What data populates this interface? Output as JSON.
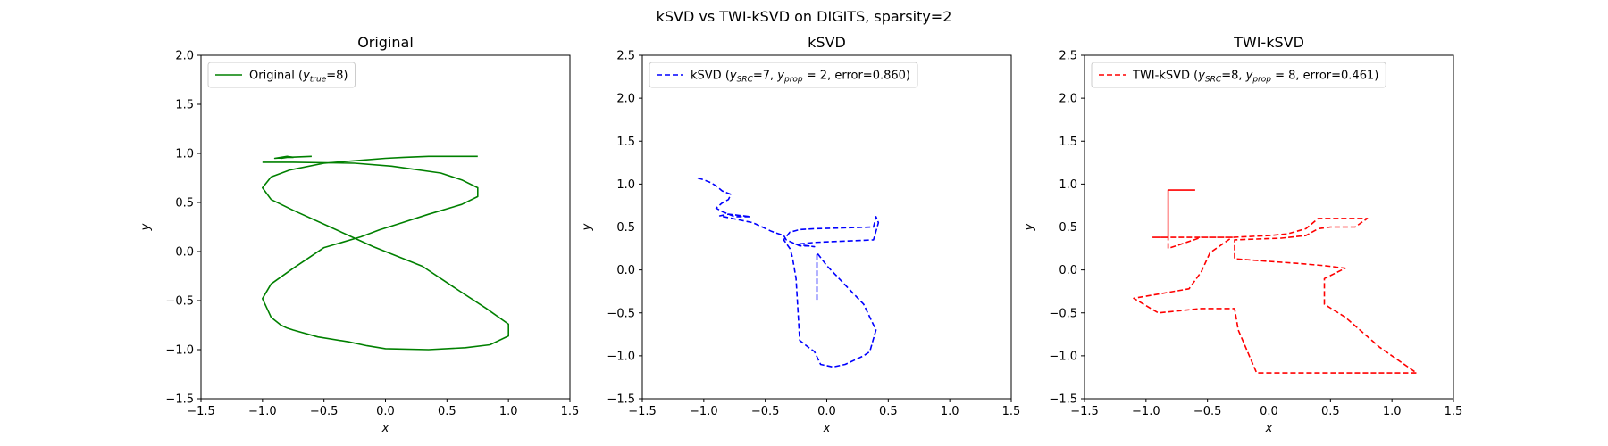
{
  "figure": {
    "suptitle": "kSVD vs TWI-kSVD on DIGITS, sparsity=2"
  },
  "chart_data": [
    {
      "type": "line",
      "title": "Original",
      "xlabel": "x",
      "ylabel": "y",
      "xlim": [
        -1.5,
        1.5
      ],
      "ylim": [
        -1.5,
        2.0
      ],
      "xticks": [
        "−1.5",
        "−1.0",
        "−0.5",
        "0.0",
        "0.5",
        "1.0",
        "1.5"
      ],
      "yticks": [
        "−1.5",
        "−1.0",
        "−0.5",
        "0.0",
        "0.5",
        "1.0",
        "1.5",
        "2.0"
      ],
      "legend_position": "upper-left",
      "legend": {
        "prefix": "Original (",
        "sym1": "y",
        "sub1": "true",
        "rest1": "=8)"
      },
      "series": [
        {
          "color": "#008000",
          "dash": "solid",
          "x": [
            -0.85,
            -0.8,
            -0.75,
            -0.8,
            -0.85,
            -0.9,
            -0.8,
            -0.6
          ],
          "y": [
            0.95,
            0.96,
            0.96,
            0.97,
            0.96,
            0.95,
            0.96,
            0.97
          ],
          "x2": [
            -1.0,
            -0.75,
            -0.25,
            0.05,
            0.45,
            0.62,
            0.75,
            0.75,
            0.62,
            0.35,
            0.1,
            -0.05,
            -0.2,
            -0.5,
            -0.75,
            -0.93,
            -1.0,
            -0.93,
            -0.85,
            -0.8,
            -0.75,
            -0.55,
            -0.3,
            -0.15,
            0.0,
            0.35,
            0.65,
            0.85,
            1.0,
            1.0,
            0.82,
            0.6,
            0.3,
            -0.1,
            -0.45,
            -0.75,
            -0.93,
            -1.0,
            -0.93,
            -0.78,
            -0.5,
            -0.2,
            0.0,
            0.15,
            0.35,
            0.65,
            0.75
          ],
          "y2": [
            0.91,
            0.91,
            0.9,
            0.87,
            0.8,
            0.73,
            0.65,
            0.56,
            0.48,
            0.38,
            0.28,
            0.22,
            0.15,
            0.04,
            -0.17,
            -0.33,
            -0.48,
            -0.67,
            -0.75,
            -0.78,
            -0.8,
            -0.87,
            -0.92,
            -0.96,
            -0.99,
            -1.0,
            -0.98,
            -0.95,
            -0.86,
            -0.74,
            -0.58,
            -0.4,
            -0.15,
            0.05,
            0.25,
            0.42,
            0.53,
            0.65,
            0.76,
            0.83,
            0.9,
            0.93,
            0.95,
            0.96,
            0.97,
            0.97,
            0.97
          ]
        }
      ]
    },
    {
      "type": "line",
      "title": "kSVD",
      "xlabel": "x",
      "ylabel": "y",
      "xlim": [
        -1.5,
        1.5
      ],
      "ylim": [
        -1.5,
        2.5
      ],
      "xticks": [
        "−1.5",
        "−1.0",
        "−0.5",
        "0.0",
        "0.5",
        "1.0",
        "1.5"
      ],
      "yticks": [
        "−1.5",
        "−1.0",
        "−0.5",
        "0.0",
        "0.5",
        "1.0",
        "1.5",
        "2.0",
        "2.5"
      ],
      "legend_position": "upper-left",
      "legend": {
        "prefix": "kSVD (",
        "sym1": "y",
        "sub1": "SRC",
        "rest1": "=7, ",
        "sym2": "y",
        "sub2": "prop",
        "rest2": " = 2, error=0.860)"
      },
      "series": [
        {
          "color": "#0000ff",
          "dash": "dashed",
          "x": [
            -1.05,
            -1.0,
            -0.95,
            -0.9,
            -0.85,
            -0.78,
            -0.8,
            -0.85,
            -0.9,
            -0.85,
            -0.75,
            -0.62,
            -0.8,
            -0.87,
            -0.6,
            -0.45,
            -0.35,
            -0.33,
            -0.25,
            -0.22,
            -0.15,
            -0.1,
            -0.15,
            -0.25,
            -0.1,
            0.38,
            0.4,
            0.42,
            0.4,
            0.38,
            -0.1,
            -0.22,
            -0.3,
            -0.35,
            -0.3,
            -0.28,
            -0.25,
            -0.22,
            -0.15,
            -0.1,
            -0.05,
            0.05,
            0.15,
            0.3,
            0.35,
            0.38,
            0.4,
            0.35,
            0.3,
            0.2,
            0.1,
            0.0,
            -0.08,
            -0.08
          ],
          "y": [
            1.07,
            1.05,
            1.02,
            0.98,
            0.92,
            0.88,
            0.82,
            0.78,
            0.72,
            0.68,
            0.62,
            0.62,
            0.65,
            0.63,
            0.55,
            0.45,
            0.4,
            0.35,
            0.3,
            0.28,
            0.28,
            0.27,
            0.28,
            0.3,
            0.32,
            0.35,
            0.45,
            0.55,
            0.62,
            0.5,
            0.48,
            0.47,
            0.44,
            0.35,
            0.25,
            0.15,
            -0.1,
            -0.82,
            -0.9,
            -0.95,
            -1.1,
            -1.13,
            -1.1,
            -1.0,
            -0.95,
            -0.8,
            -0.7,
            -0.55,
            -0.4,
            -0.25,
            -0.1,
            0.05,
            0.2,
            -0.35
          ]
        }
      ]
    },
    {
      "type": "line",
      "title": "TWI-kSVD",
      "xlabel": "x",
      "ylabel": "y",
      "xlim": [
        -1.5,
        1.5
      ],
      "ylim": [
        -1.5,
        2.5
      ],
      "xticks": [
        "−1.5",
        "−1.0",
        "−0.5",
        "0.0",
        "0.5",
        "1.0",
        "1.5"
      ],
      "yticks": [
        "−1.5",
        "−1.0",
        "−0.5",
        "0.0",
        "0.5",
        "1.0",
        "1.5",
        "2.0",
        "2.5"
      ],
      "legend_position": "upper-left",
      "legend": {
        "prefix": "TWI-kSVD (",
        "sym1": "y",
        "sub1": "SRC",
        "rest1": "=8, ",
        "sym2": "y",
        "sub2": "prop",
        "rest2": " = 8, error=0.461)"
      },
      "series": [
        {
          "color": "#ff0000",
          "dash": "solid",
          "x": [
            -0.82,
            -0.82,
            -0.6
          ],
          "y": [
            0.5,
            0.93,
            0.93
          ]
        },
        {
          "color": "#ff0000",
          "dash": "dashed",
          "x": [
            -0.82,
            -0.82,
            -0.82,
            -0.55,
            -0.3,
            0.0,
            0.15,
            0.3,
            0.4,
            0.65,
            0.8,
            0.7,
            0.5,
            0.4,
            0.3,
            0.1,
            -0.1,
            -0.28,
            -0.28,
            0.0,
            0.2,
            0.45,
            0.62,
            0.45,
            0.45,
            0.62,
            0.9,
            1.2,
            0.55,
            -0.1,
            -0.25,
            -0.28,
            -0.55,
            -0.9,
            -1.1,
            -0.65,
            -0.55,
            -0.48,
            -0.3,
            -0.95,
            -0.82,
            -0.82
          ],
          "y": [
            0.5,
            0.38,
            0.25,
            0.38,
            0.38,
            0.4,
            0.42,
            0.48,
            0.6,
            0.6,
            0.6,
            0.5,
            0.5,
            0.48,
            0.4,
            0.37,
            0.36,
            0.35,
            0.13,
            0.1,
            0.08,
            0.05,
            0.02,
            -0.1,
            -0.4,
            -0.55,
            -0.9,
            -1.2,
            -1.2,
            -1.2,
            -0.7,
            -0.45,
            -0.45,
            -0.5,
            -0.33,
            -0.22,
            -0.02,
            0.2,
            0.38,
            0.38,
            0.38,
            0.5
          ]
        }
      ]
    }
  ]
}
